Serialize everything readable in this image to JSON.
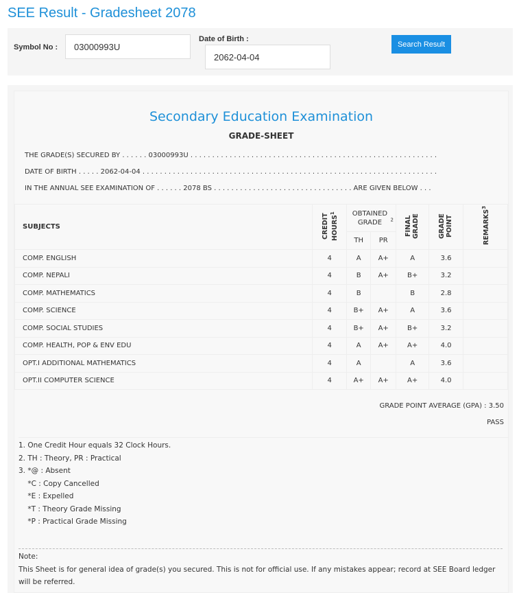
{
  "title": "SEE Result - Gradesheet 2078",
  "search": {
    "symbol_label": "Symbol No :",
    "symbol_value": "03000993U",
    "dob_label": "Date of Birth :",
    "dob_value": "2062-04-04",
    "button": "Search Result"
  },
  "sheet": {
    "exam": "Secondary Education Examination",
    "heading": "GRADE-SHEET",
    "line1": "THE GRADE(S) SECURED BY . . . . . . 03000993U . . . . . . . . . . . . . . . . . . . . . . . . . . . . . . . . . . . . . . . . . . . . . . . . . . . . . . . . .",
    "line2": "DATE OF BIRTH . . . . . 2062-04-04 . . . . . . . . . . . . . . . . . . . . . . . . . . . . . . . . . . . . . . . . . . . . . . . . . . . . . . . . . . . . . . . . . . . .",
    "line3": "IN THE ANNUAL SEE EXAMINATION OF . . . . . . 2078 BS . . . . . . . . . . . . . . . . . . . . . . . . . . . . . . . . ARE GIVEN BELOW . . .",
    "headers": {
      "subjects": "SUBJECTS",
      "credit": "CREDIT HOURS",
      "credit_sup": "1",
      "obtained": "OBTAINED GRADE",
      "obtained_sup": "2",
      "th": "TH",
      "pr": "PR",
      "final": "FINAL GRADE",
      "gp": "GRADE POINT",
      "remarks": "REMARKS",
      "remarks_sup": "3"
    },
    "rows": [
      {
        "subject": "COMP. ENGLISH",
        "credit": "4",
        "th": "A",
        "pr": "A+",
        "final": "A",
        "gp": "3.6"
      },
      {
        "subject": "COMP. NEPALI",
        "credit": "4",
        "th": "B",
        "pr": "A+",
        "final": "B+",
        "gp": "3.2"
      },
      {
        "subject": "COMP. MATHEMATICS",
        "credit": "4",
        "th": "B",
        "pr": "",
        "final": "B",
        "gp": "2.8"
      },
      {
        "subject": "COMP. SCIENCE",
        "credit": "4",
        "th": "B+",
        "pr": "A+",
        "final": "A",
        "gp": "3.6"
      },
      {
        "subject": "COMP. SOCIAL STUDIES",
        "credit": "4",
        "th": "B+",
        "pr": "A+",
        "final": "B+",
        "gp": "3.2"
      },
      {
        "subject": "COMP. HEALTH, POP & ENV EDU",
        "credit": "4",
        "th": "A",
        "pr": "A+",
        "final": "A+",
        "gp": "4.0"
      },
      {
        "subject": "OPT.I ADDITIONAL MATHEMATICS",
        "credit": "4",
        "th": "A",
        "pr": "",
        "final": "A",
        "gp": "3.6"
      },
      {
        "subject": "OPT.II COMPUTER SCIENCE",
        "credit": "4",
        "th": "A+",
        "pr": "A+",
        "final": "A+",
        "gp": "4.0"
      }
    ],
    "gpa": "GRADE POINT AVERAGE (GPA) : 3.50",
    "result": "PASS",
    "notes": [
      "1. One Credit Hour equals 32 Clock Hours.",
      "2. TH : Theory, PR : Practical",
      "3. *@ : Absent",
      "    *C : Copy Cancelled",
      "    *E : Expelled",
      "    *T : Theory Grade Missing",
      "    *P : Practical Grade Missing"
    ],
    "note_title": "Note:",
    "note_text": "This Sheet is for general idea of grade(s) you secured. This is not for official use. If any mistakes appear; record at SEE Board ledger will be referred."
  }
}
